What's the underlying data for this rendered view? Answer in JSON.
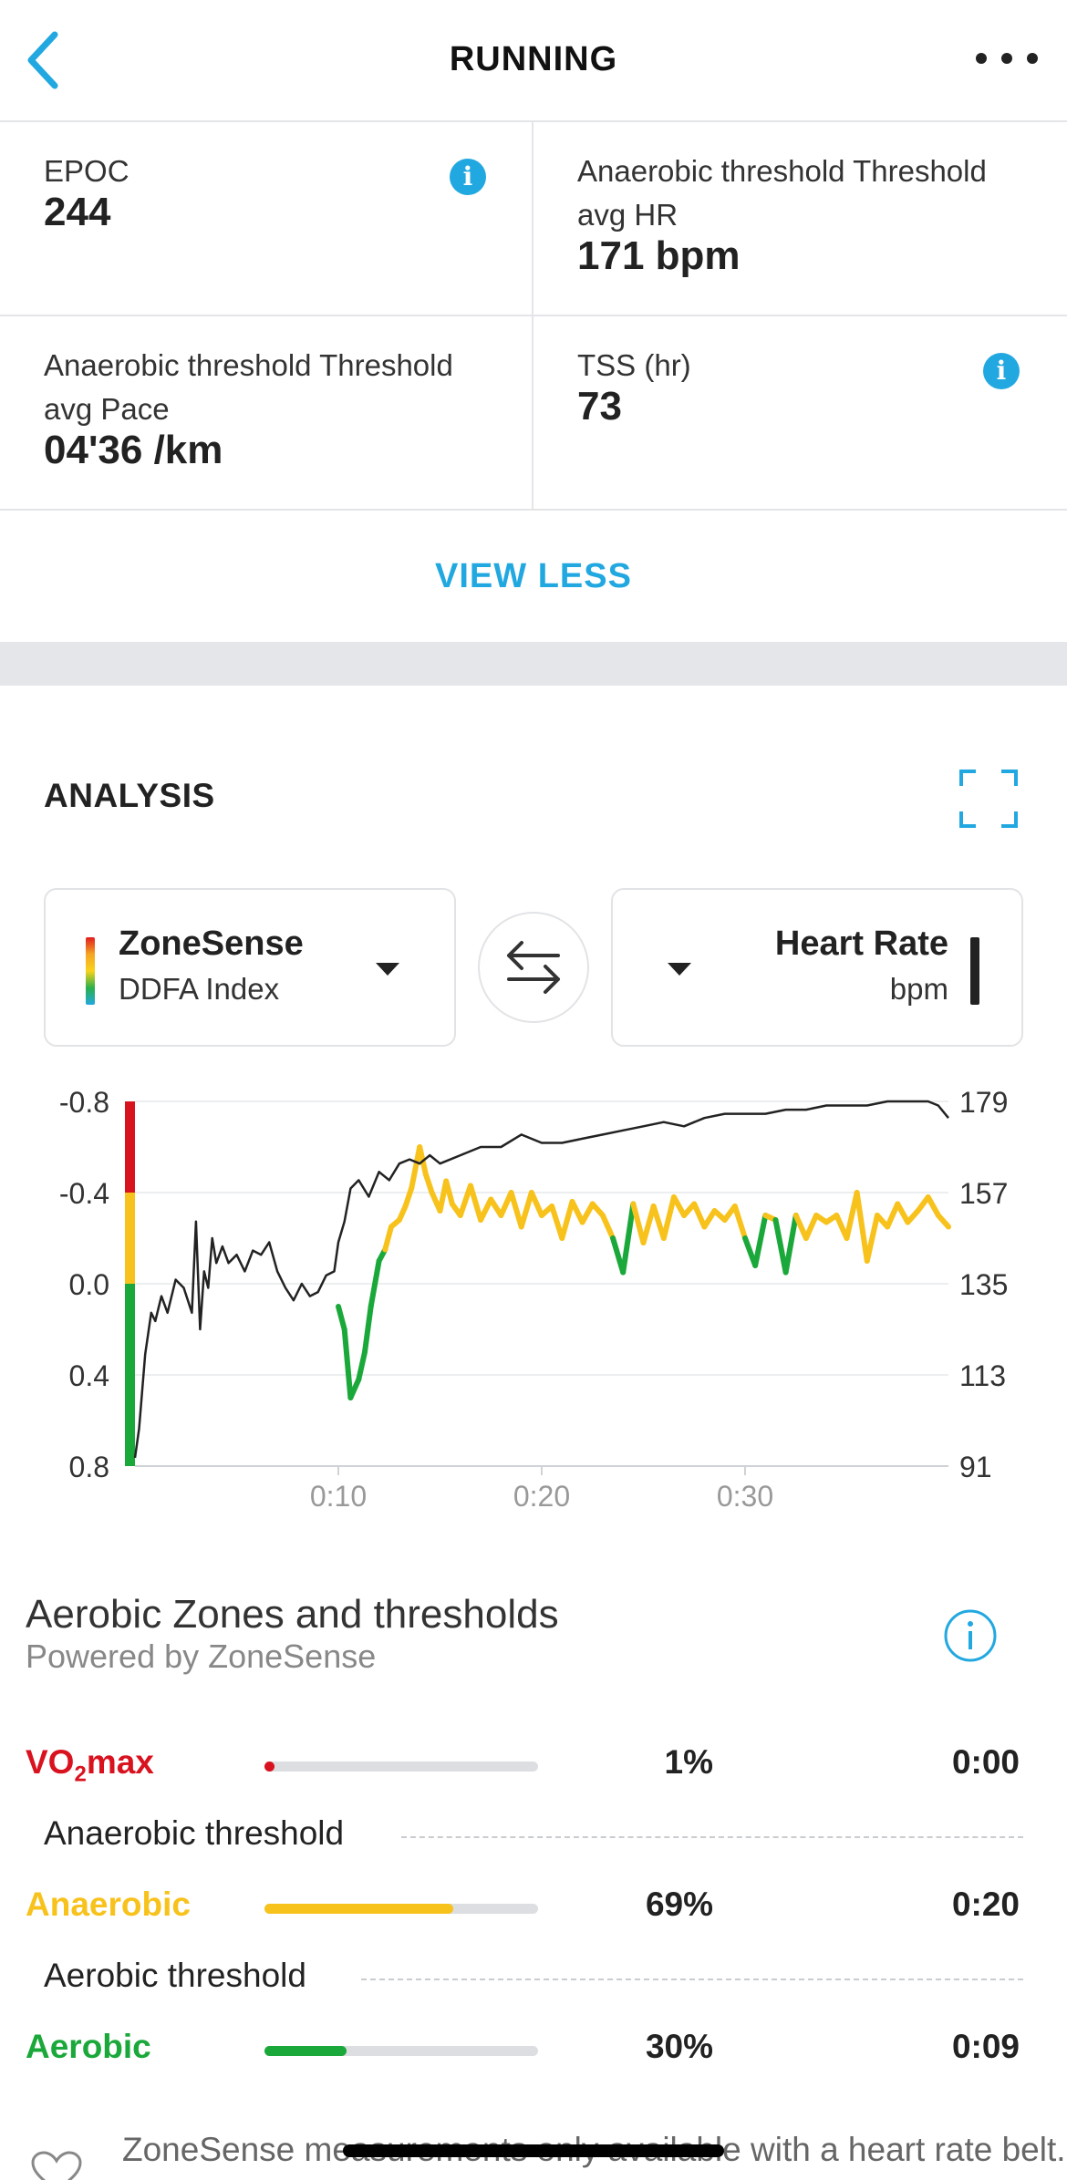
{
  "header": {
    "title": "RUNNING"
  },
  "stats": [
    {
      "label": "EPOC",
      "value": "244",
      "info": true
    },
    {
      "label": "Anaerobic threshold Threshold avg HR",
      "value": "171 bpm",
      "info": false
    },
    {
      "label": "Anaerobic threshold Threshold avg Pace",
      "value": "04'36 /km",
      "info": false
    },
    {
      "label": "TSS (hr)",
      "value": "73",
      "info": true
    }
  ],
  "view_less_label": "VIEW LESS",
  "analysis": {
    "title": "ANALYSIS",
    "left_selector": {
      "main": "ZoneSense",
      "sub": "DDFA Index"
    },
    "right_selector": {
      "main": "Heart Rate",
      "sub": "bpm"
    }
  },
  "chart_data": {
    "type": "line",
    "x_tick_labels": [
      "0:10",
      "0:20",
      "0:30"
    ],
    "x_ticks_minutes": [
      10,
      20,
      30
    ],
    "x_range_minutes": [
      0,
      40
    ],
    "left_axis": {
      "ticks": [
        "-0.8",
        "-0.4",
        "0.0",
        "0.4",
        "0.8"
      ],
      "range": [
        -0.8,
        0.8
      ],
      "inverted": true
    },
    "right_axis": {
      "ticks": [
        "179",
        "157",
        "135",
        "113",
        "91"
      ],
      "range": [
        91,
        179
      ]
    },
    "grid": true,
    "colors": {
      "red": "#d9121f",
      "yellow": "#f8c21c",
      "green": "#1ba83a",
      "hr_line": "#222222"
    },
    "hr_series": {
      "x": [
        0,
        0.2,
        0.5,
        0.8,
        1,
        1.3,
        1.6,
        2,
        2.4,
        2.8,
        3,
        3.2,
        3.4,
        3.6,
        3.8,
        4,
        4.3,
        4.6,
        5,
        5.4,
        5.8,
        6.2,
        6.6,
        7,
        7.4,
        7.8,
        8.2,
        8.6,
        9,
        9.4,
        9.8,
        10,
        10.3,
        10.6,
        11,
        11.5,
        12,
        12.5,
        13,
        13.5,
        14,
        14.5,
        15,
        16,
        17,
        18,
        19,
        20,
        21,
        22,
        23,
        24,
        25,
        26,
        27,
        28,
        29,
        30,
        31,
        32,
        33,
        34,
        35,
        36,
        37,
        38,
        39,
        39.5,
        40
      ],
      "y": [
        93,
        100,
        118,
        128,
        126,
        132,
        128,
        136,
        134,
        128,
        150,
        124,
        138,
        134,
        146,
        140,
        144,
        140,
        142,
        138,
        143,
        142,
        145,
        138,
        134,
        131,
        135,
        132,
        133,
        137,
        138,
        145,
        150,
        158,
        160,
        156,
        162,
        160,
        164,
        165,
        164,
        166,
        164,
        166,
        168,
        168,
        171,
        169,
        169,
        170,
        171,
        172,
        173,
        174,
        173,
        175,
        176,
        176,
        176,
        177,
        177,
        178,
        178,
        178,
        179,
        179,
        179,
        178,
        175
      ]
    },
    "ddfa_series": {
      "x": [
        10,
        10.3,
        10.6,
        11,
        11.3,
        11.6,
        12,
        12.3,
        12.6,
        13,
        13.3,
        13.6,
        14,
        14.3,
        14.6,
        15,
        15.3,
        15.6,
        16,
        16.5,
        17,
        17.5,
        18,
        18.5,
        19,
        19.5,
        20,
        20.5,
        21,
        21.5,
        22,
        22.5,
        23,
        23.5,
        24,
        24.5,
        25,
        25.5,
        26,
        26.5,
        27,
        27.5,
        28,
        28.5,
        29,
        29.5,
        30,
        30.5,
        31,
        31.5,
        32,
        32.5,
        33,
        33.5,
        34,
        34.5,
        35,
        35.5,
        36,
        36.5,
        37,
        37.5,
        38,
        38.5,
        39,
        39.5,
        40
      ],
      "y": [
        0.1,
        0.2,
        0.5,
        0.42,
        0.3,
        0.1,
        -0.1,
        -0.15,
        -0.25,
        -0.28,
        -0.34,
        -0.42,
        -0.6,
        -0.48,
        -0.4,
        -0.32,
        -0.45,
        -0.35,
        -0.3,
        -0.43,
        -0.28,
        -0.37,
        -0.3,
        -0.4,
        -0.25,
        -0.4,
        -0.3,
        -0.34,
        -0.2,
        -0.36,
        -0.27,
        -0.35,
        -0.3,
        -0.2,
        -0.05,
        -0.35,
        -0.18,
        -0.34,
        -0.2,
        -0.38,
        -0.3,
        -0.35,
        -0.25,
        -0.32,
        -0.28,
        -0.34,
        -0.2,
        -0.08,
        -0.3,
        -0.28,
        -0.05,
        -0.3,
        -0.2,
        -0.3,
        -0.27,
        -0.3,
        -0.2,
        -0.4,
        -0.1,
        -0.3,
        -0.25,
        -0.35,
        -0.27,
        -0.32,
        -0.38,
        -0.3,
        -0.25
      ]
    }
  },
  "zones": {
    "title": "Aerobic Zones and thresholds",
    "subtitle": "Powered by ZoneSense",
    "rows": [
      {
        "name_main": "VO",
        "name_sub": "2",
        "name_rest": "max",
        "color": "#d9121f",
        "fraction": 0.01,
        "percent": "1%",
        "time": "0:00"
      },
      {
        "name_main": "Anaerobic",
        "name_sub": "",
        "name_rest": "",
        "color": "#f8c21c",
        "fraction": 0.69,
        "percent": "69%",
        "time": "0:20"
      },
      {
        "name_main": "Aerobic",
        "name_sub": "",
        "name_rest": "",
        "color": "#1ba83a",
        "fraction": 0.3,
        "percent": "30%",
        "time": "0:09"
      }
    ],
    "thresholds": [
      "Anaerobic threshold",
      "Aerobic threshold"
    ]
  },
  "note": {
    "text": "ZoneSense measurements only available with a heart rate belt."
  },
  "icons": {
    "back": "chevron-left-icon",
    "more": "more-horizontal-icon",
    "info": "info-icon",
    "expand": "fullscreen-icon",
    "swap": "swap-arrows-icon",
    "heart": "heart-icon"
  },
  "theme": {
    "accent": "#22a8e0"
  }
}
